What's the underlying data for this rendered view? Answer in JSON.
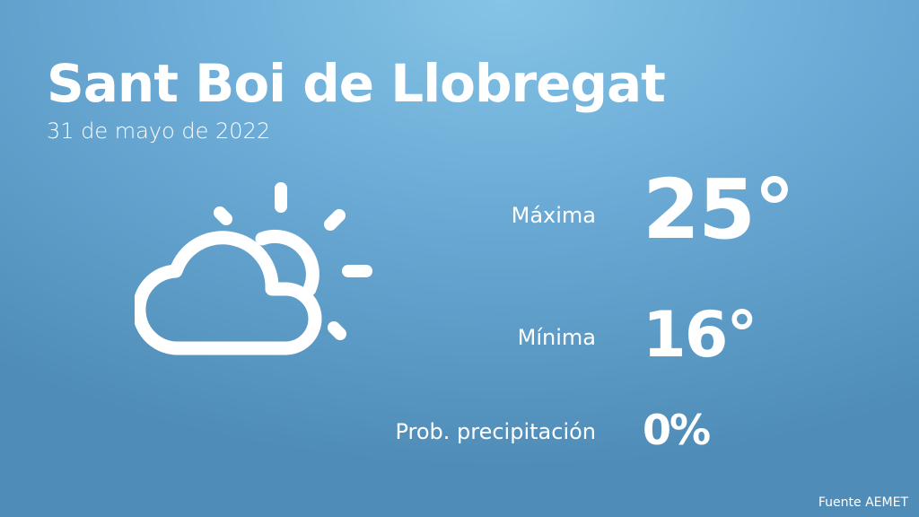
{
  "header": {
    "city": "Sant Boi de Llobregat",
    "date": "31 de mayo de 2022"
  },
  "weather": {
    "icon": "partly-cloudy-icon",
    "max_label": "Máxima",
    "max_value": "25°",
    "min_label": "Mínima",
    "min_value": "16°",
    "precip_label": "Prob. precipitación",
    "precip_value": "0%"
  },
  "footer": {
    "source": "Fuente AEMET"
  },
  "colors": {
    "background_top": "#86c4e6",
    "background_bottom": "#4f8db8",
    "text": "#ffffff"
  }
}
